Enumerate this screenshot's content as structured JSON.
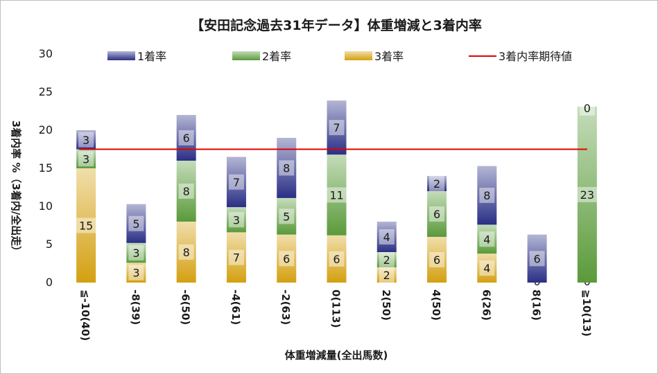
{
  "chart_data": {
    "type": "bar",
    "stacked": true,
    "title": "【安田記念過去31年データ】体重増減と3着内率",
    "xlabel": "体重増減量(全出馬数)",
    "ylabel": "3着内率 %（3着内/全出走）",
    "ylim": [
      0,
      30
    ],
    "yticks": [
      0,
      5,
      10,
      15,
      20,
      25,
      30
    ],
    "grid": false,
    "legend_position": "top",
    "categories": [
      "≦-10(40)",
      "-8(39)",
      "-6(50)",
      "-4(61)",
      "-2(63)",
      "0(113)",
      "2(50)",
      "4(50)",
      "6(26)",
      "8(16)",
      "≧10(13)"
    ],
    "series": [
      {
        "name": "3着率",
        "color": "#d4a010",
        "values": [
          15,
          2.6,
          8,
          6.6,
          6.3,
          6.2,
          2,
          6,
          3.8,
          0,
          0
        ],
        "labels": [
          "15",
          "3",
          "8",
          "7",
          "6",
          "6",
          "2",
          "6",
          "4",
          "0",
          "0"
        ]
      },
      {
        "name": "2着率",
        "color": "#5a9a3a",
        "values": [
          2.5,
          2.6,
          8,
          3.3,
          4.8,
          10.6,
          2,
          6,
          3.8,
          0,
          23.1
        ],
        "labels": [
          "3",
          "3",
          "8",
          "3",
          "5",
          "11",
          "2",
          "6",
          "4",
          "",
          "23"
        ]
      },
      {
        "name": "1着率",
        "color": "#2a2f85",
        "values": [
          2.5,
          5.1,
          6,
          6.6,
          7.9,
          7.1,
          4,
          2,
          7.7,
          6.3,
          0
        ],
        "labels": [
          "3",
          "5",
          "6",
          "7",
          "8",
          "7",
          "4",
          "2",
          "8",
          "6",
          "0"
        ]
      }
    ],
    "reference_line": {
      "name": "3着内率期待値",
      "value": 17.5,
      "color": "#e00000"
    }
  }
}
